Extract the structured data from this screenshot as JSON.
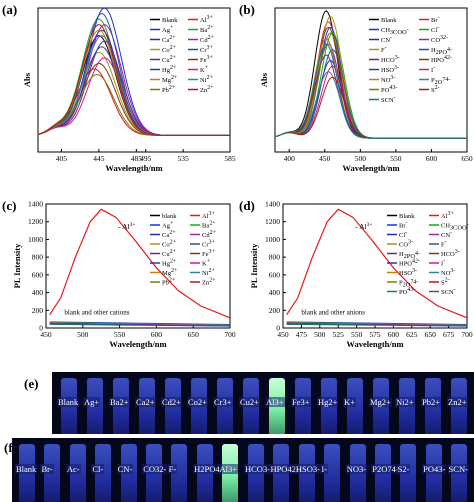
{
  "chart_data": [
    {
      "panel": "(a)",
      "type": "line",
      "xlabel": "Wavelength/nm",
      "ylabel": "Abs",
      "xlim": [
        380,
        585
      ],
      "xticks": [
        405,
        445,
        485,
        495,
        535,
        585
      ],
      "ylim": [
        0,
        0.26
      ],
      "legend": [
        "Blank",
        "Al3+",
        "Ag+",
        "Ba2+",
        "Ca2+",
        "Cd2+",
        "Co2+",
        "Cr3+",
        "Cu2+",
        "Fe3+",
        "Hg2+",
        "K+",
        "Mg2+",
        "Ni2+",
        "Pb2+",
        "Zn2+"
      ],
      "series": [
        {
          "name": "Blank",
          "color": "#000000",
          "peak": 0.18
        },
        {
          "name": "Al3+",
          "color": "#e8191b",
          "peak": 0.12
        },
        {
          "name": "Ag+",
          "color": "#1a2fe0",
          "peak": 0.23
        },
        {
          "name": "Ba2+",
          "color": "#1aa81a",
          "peak": 0.21
        },
        {
          "name": "Ca2+",
          "color": "#2a2aa8",
          "peak": 0.19
        },
        {
          "name": "Cd2+",
          "color": "#9b22b4",
          "peak": 0.2
        },
        {
          "name": "Co2+",
          "color": "#a8961a",
          "peak": 0.15
        },
        {
          "name": "Cr3+",
          "color": "#2255a0",
          "peak": 0.22
        },
        {
          "name": "Cu2+",
          "color": "#6a2a7a",
          "peak": 0.17
        },
        {
          "name": "Fe3+",
          "color": "#7a3a10",
          "peak": 0.13
        },
        {
          "name": "Hg2+",
          "color": "#1c3fa8",
          "peak": 0.16
        },
        {
          "name": "K+",
          "color": "#cc1c8c",
          "peak": 0.14
        },
        {
          "name": "Mg2+",
          "color": "#c67d10",
          "peak": 0.19
        },
        {
          "name": "Ni2+",
          "color": "#3a7aa8",
          "peak": 0.18
        },
        {
          "name": "Pb2+",
          "color": "#7a7a10",
          "peak": 0.11
        },
        {
          "name": "Zn2+",
          "color": "#b01a1a",
          "peak": 0.2
        }
      ]
    },
    {
      "panel": "(b)",
      "type": "line",
      "xlabel": "Wavelength/nm",
      "ylabel": "Abs",
      "xlim": [
        380,
        650
      ],
      "xticks": [
        400,
        450,
        500,
        550,
        600,
        650
      ],
      "ylim": [
        0,
        0.26
      ],
      "legend": [
        "Blank",
        "Br-",
        "CH3COO-",
        "Cl-",
        "CN-",
        "CO32-",
        "F-",
        "H2PO4-",
        "HCO3-",
        "HPO42-",
        "HSO3-",
        "I-",
        "NO3-",
        "P2O74-",
        "PO43-",
        "S2-",
        "SCN-"
      ]
    },
    {
      "panel": "(c)",
      "type": "line",
      "xlabel": "Wavelength/nm",
      "ylabel": "PL Intensity",
      "xlim": [
        450,
        700
      ],
      "xticks": [
        450,
        500,
        550,
        600,
        650,
        700
      ],
      "ylim": [
        0,
        1400
      ],
      "yticks": [
        0,
        200,
        400,
        600,
        800,
        1000,
        1200,
        1400
      ],
      "annotation": "Al3+",
      "baseline_label": "blank and other cations",
      "legend": [
        "blank",
        "Al3+",
        "Ag+",
        "Ba2+",
        "Ca2+",
        "Cd2+",
        "Co2+",
        "Cr3+",
        "Cu2+",
        "Fe3+",
        "Hg2+",
        "K+",
        "Mg2+",
        "Ni2+",
        "Pb2+",
        "Zn2+"
      ],
      "x": [
        455,
        470,
        490,
        510,
        525,
        545,
        570,
        600,
        630,
        660,
        700
      ],
      "y": [
        150,
        340,
        800,
        1200,
        1340,
        1250,
        1000,
        680,
        420,
        250,
        115
      ]
    },
    {
      "panel": "(d)",
      "type": "line",
      "xlabel": "Wavelength/nm",
      "ylabel": "PL Intensity",
      "xlim": [
        450,
        700
      ],
      "xticks": [
        450,
        475,
        500,
        525,
        550,
        575,
        600,
        625,
        650,
        675,
        700
      ],
      "ylim": [
        0,
        1400
      ],
      "yticks": [
        0,
        200,
        400,
        600,
        800,
        1000,
        1200,
        1400
      ],
      "annotation": "Al3+",
      "baseline_label": "blank and other anions",
      "legend": [
        "Blank",
        "Al3+",
        "Br-",
        "CH3COO-",
        "Cl-",
        "CN-",
        "CO3-",
        "F-",
        "H2PO4-",
        "HCO3-",
        "HPO42-",
        "I-",
        "HSO3-",
        "NO3-",
        "P2O74-",
        "S2-",
        "PO43-",
        "SCN-"
      ],
      "x": [
        455,
        470,
        490,
        510,
        525,
        545,
        570,
        600,
        630,
        660,
        700
      ],
      "y": [
        150,
        340,
        800,
        1200,
        1340,
        1250,
        1000,
        680,
        420,
        250,
        115
      ]
    }
  ],
  "photos": {
    "e": {
      "label": "(e)",
      "vials": [
        "Blank",
        "Ag+",
        "Ba2+",
        "Ca2+",
        "Cd2+",
        "Co2+",
        "Cr3+",
        "Cu2+",
        "Al3+",
        "Fe3+",
        "Hg2+",
        "K+",
        "Mg2+",
        "Ni2+",
        "Pb2+",
        "Zn2+"
      ],
      "highlight": "Al3+"
    },
    "f": {
      "label": "(f)",
      "vials": [
        "Blank",
        "Br-",
        "Ac-",
        "Cl-",
        "CN-",
        "CO32-",
        "F-",
        "H2PO4-",
        "Al3+",
        "HCO3-",
        "HPO42-",
        "HSO3-",
        "I-",
        "NO3-",
        "P2O74-",
        "S2-",
        "PO43-",
        "SCN-"
      ],
      "highlight": "Al3+"
    }
  }
}
